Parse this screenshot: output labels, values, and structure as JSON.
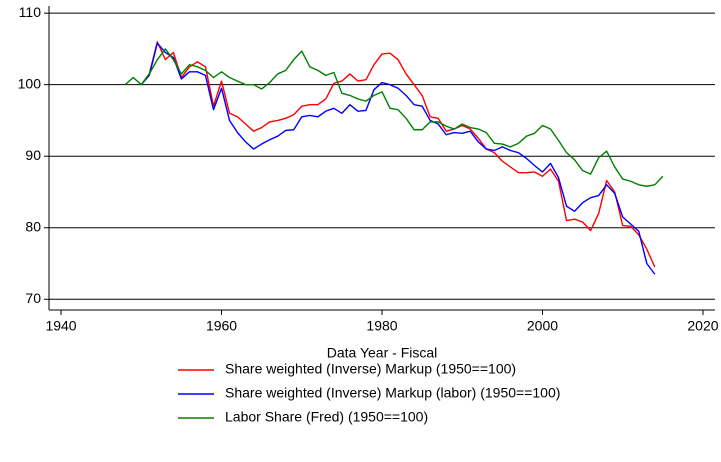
{
  "chart_data": {
    "type": "line",
    "x_label": "Data Year - Fiscal",
    "x": [
      1948,
      1949,
      1950,
      1951,
      1952,
      1953,
      1954,
      1955,
      1956,
      1957,
      1958,
      1959,
      1960,
      1961,
      1962,
      1963,
      1964,
      1965,
      1966,
      1967,
      1968,
      1969,
      1970,
      1971,
      1972,
      1973,
      1974,
      1975,
      1976,
      1977,
      1978,
      1979,
      1980,
      1981,
      1982,
      1983,
      1984,
      1985,
      1986,
      1987,
      1988,
      1989,
      1990,
      1991,
      1992,
      1993,
      1994,
      1995,
      1996,
      1997,
      1998,
      1999,
      2000,
      2001,
      2002,
      2003,
      2004,
      2005,
      2006,
      2007,
      2008,
      2009,
      2010,
      2011,
      2012,
      2013,
      2014,
      2015
    ],
    "series": [
      {
        "name": "Share weighted (Inverse) Markup (1950==100)",
        "color": "#ff0000",
        "values": [
          null,
          null,
          100,
          101.5,
          106,
          103.5,
          104.5,
          101,
          102.5,
          103.2,
          102.5,
          97,
          100.5,
          96,
          95.5,
          94.5,
          93.5,
          94,
          94.8,
          95,
          95.3,
          95.8,
          97,
          97.2,
          97.2,
          98,
          100.2,
          100.5,
          101.5,
          100.5,
          100.7,
          102.8,
          104.3,
          104.4,
          103.5,
          101.5,
          100,
          98.5,
          95.5,
          95.3,
          93.5,
          93.8,
          94.3,
          93.8,
          92.5,
          91,
          90.5,
          89.3,
          88.5,
          87.7,
          87.7,
          87.8,
          87.2,
          88.2,
          86.5,
          81,
          81.2,
          80.8,
          79.6,
          82,
          86.6,
          85,
          80.3,
          80.2,
          79,
          77,
          74.5,
          null
        ]
      },
      {
        "name": "Share weighted (Inverse) Markup (labor) (1950==100)",
        "color": "#0000ff",
        "values": [
          null,
          null,
          100,
          101.3,
          105.8,
          104.5,
          103.8,
          100.8,
          101.8,
          101.8,
          101.3,
          96.5,
          99.5,
          95,
          93.3,
          92,
          91,
          91.7,
          92.3,
          92.8,
          93.6,
          93.7,
          95.5,
          95.7,
          95.5,
          96.3,
          96.7,
          96,
          97.2,
          96.3,
          96.4,
          99.3,
          100.3,
          100,
          99.5,
          98.5,
          97.2,
          97,
          95,
          94.5,
          93,
          93.3,
          93.2,
          93.5,
          92,
          91,
          90.8,
          91.3,
          90.8,
          90.5,
          89.7,
          88.7,
          87.8,
          89,
          87,
          83,
          82.3,
          83.5,
          84.2,
          84.5,
          86,
          84.8,
          81.5,
          80.5,
          79.5,
          75,
          73.5,
          null
        ]
      },
      {
        "name": "Labor Share (Fred) (1950==100)",
        "color": "#008000",
        "values": [
          100,
          101,
          100,
          101.5,
          103.5,
          105,
          103.5,
          101.5,
          102.8,
          102.5,
          102,
          101,
          101.8,
          101,
          100.5,
          100,
          100,
          99.4,
          100.3,
          101.5,
          102,
          103.5,
          104.7,
          102.5,
          102,
          101.3,
          101.7,
          98.8,
          98.5,
          98,
          97.7,
          98.5,
          99,
          96.7,
          96.5,
          95.3,
          93.7,
          93.7,
          94.8,
          94.8,
          94.2,
          93.8,
          94.5,
          94,
          93.8,
          93.3,
          91.8,
          91.7,
          91.3,
          91.8,
          92.8,
          93.2,
          94.3,
          93.8,
          92.2,
          90.5,
          89.5,
          88,
          87.5,
          89.8,
          90.7,
          88.5,
          86.8,
          86.5,
          86,
          85.8,
          86,
          87.2
        ]
      }
    ],
    "xlim": [
      1938.5,
      2021.5
    ],
    "xticks": [
      1940,
      1960,
      1980,
      2000,
      2020
    ],
    "ylim": [
      68.5,
      111
    ],
    "yticks": [
      70,
      80,
      90,
      100,
      110
    ],
    "grid": true
  }
}
